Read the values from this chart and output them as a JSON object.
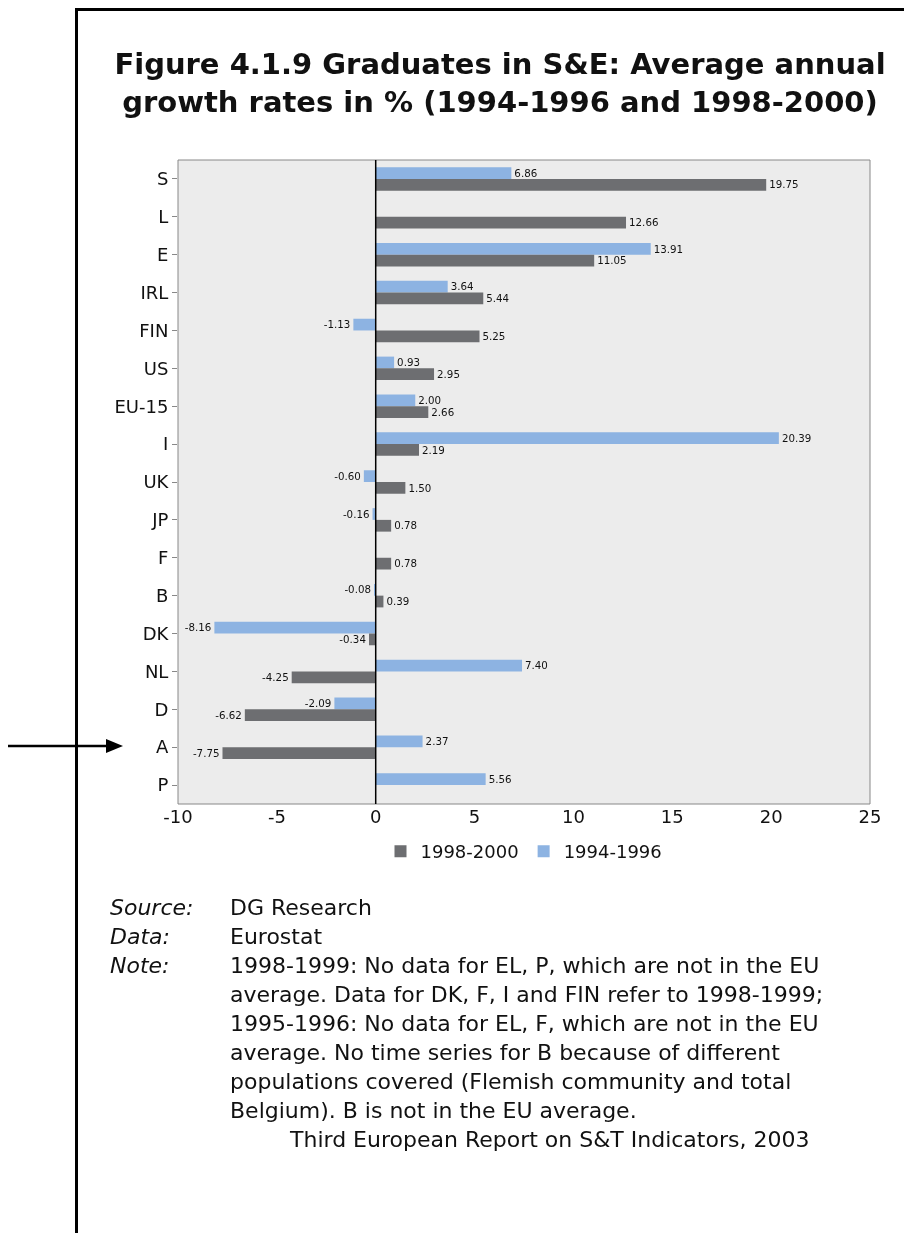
{
  "chart_data": {
    "type": "bar",
    "orientation": "horizontal",
    "title": "Figure 4.1.9 Graduates in S&E: Average annual growth rates in % (1994-1996 and 1998-2000)",
    "categories": [
      "S",
      "L",
      "E",
      "IRL",
      "FIN",
      "US",
      "EU-15",
      "I",
      "UK",
      "JP",
      "F",
      "B",
      "DK",
      "NL",
      "D",
      "A",
      "P"
    ],
    "series": [
      {
        "name": "1994-1996",
        "color": "#8db3e2",
        "values": [
          6.86,
          null,
          13.91,
          3.64,
          -1.13,
          0.93,
          2.0,
          20.39,
          -0.6,
          -0.16,
          null,
          -0.08,
          -8.16,
          7.4,
          -2.09,
          2.37,
          5.56
        ],
        "value_labels": [
          "6.86",
          null,
          "13.91",
          "3.64",
          "-1.13",
          "0.93",
          "2.00",
          "20.39",
          "-0.60",
          "-0.16",
          null,
          "-0.08",
          "-8.16",
          "7.40",
          "-2.09",
          "2.37",
          "5.56"
        ]
      },
      {
        "name": "1998-2000",
        "color": "#6d6e71",
        "values": [
          19.75,
          12.66,
          11.05,
          5.44,
          5.25,
          2.95,
          2.66,
          2.19,
          1.5,
          0.78,
          0.78,
          0.39,
          -0.34,
          -4.25,
          -6.62,
          -7.75,
          null
        ],
        "value_labels": [
          "19.75",
          "12.66",
          "11.05",
          "5.44",
          "5.25",
          "2.95",
          "2.66",
          "2.19",
          "1.50",
          "0.78",
          "0.78",
          "0.39",
          "-0.34",
          "-4.25",
          "-6.62",
          "-7.75",
          null
        ]
      }
    ],
    "xlim": [
      -10,
      25
    ],
    "xticks": [
      -10,
      -5,
      0,
      5,
      10,
      15,
      20,
      25
    ],
    "grid": false,
    "ref_lines": [
      {
        "axis": "x",
        "value": 0,
        "color": "#000000"
      }
    ],
    "legend": "bottom",
    "annotations": [
      "Source: DG Research",
      "Data: Eurostat",
      "Note: 1998-1999: No data for EL, P, which are not in the EU average. Data for DK, F, I and FIN refer to 1998-1999; 1995-1996: No data for EL, F, which are not in the EU average. No time series for B because of different populations covered (Flemish community and total Belgium). B is not in the EU average.",
      "Third European Report on S&T Indicators, 2003"
    ]
  }
}
